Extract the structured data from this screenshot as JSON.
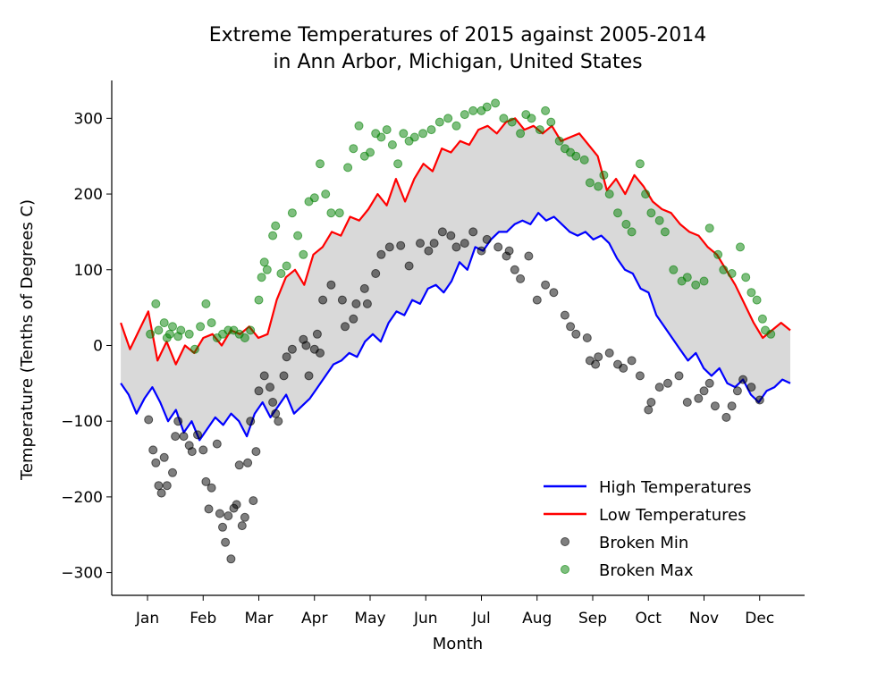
{
  "chart_data": {
    "type": "line",
    "title": "Extreme Temperatures of 2015 against 2005-2014",
    "subtitle": "in Ann Arbor, Michigan, United States",
    "xlabel": "Month",
    "ylabel": "Temperature (Tenths of Degrees C)",
    "ylim": [
      -330,
      350
    ],
    "yticks": [
      -300,
      -200,
      -100,
      0,
      100,
      200,
      300
    ],
    "ytick_labels": [
      "−300",
      "−200",
      "−100",
      "0",
      "100",
      "200",
      "300"
    ],
    "xticks": [
      "Jan",
      "Feb",
      "Mar",
      "Apr",
      "May",
      "Jun",
      "Jul",
      "Aug",
      "Sep",
      "Oct",
      "Nov",
      "Dec"
    ],
    "fill_between": {
      "color": "#d9d9d9"
    },
    "legend_position": "lower right",
    "series": [
      {
        "name": "High Temperatures",
        "kind": "line",
        "color": "#0000ff",
        "values": [
          -50,
          -65,
          -90,
          -70,
          -55,
          -75,
          -100,
          -85,
          -115,
          -100,
          -125,
          -110,
          -95,
          -105,
          -90,
          -100,
          -120,
          -90,
          -75,
          -95,
          -80,
          -65,
          -90,
          -80,
          -70,
          -55,
          -40,
          -25,
          -20,
          -10,
          -15,
          5,
          15,
          5,
          30,
          45,
          40,
          60,
          55,
          75,
          80,
          70,
          85,
          110,
          100,
          130,
          125,
          140,
          150,
          150,
          160,
          165,
          160,
          175,
          165,
          170,
          160,
          150,
          145,
          150,
          140,
          145,
          135,
          115,
          100,
          95,
          75,
          70,
          40,
          25,
          10,
          -5,
          -20,
          -10,
          -30,
          -40,
          -30,
          -50,
          -55,
          -45,
          -65,
          -75,
          -60,
          -55,
          -45,
          -50
        ]
      },
      {
        "name": "Low Temperatures",
        "kind": "line",
        "color": "#ff0000",
        "values": [
          30,
          -5,
          20,
          45,
          -20,
          5,
          -25,
          0,
          -10,
          10,
          15,
          0,
          20,
          15,
          25,
          10,
          15,
          60,
          90,
          100,
          80,
          120,
          130,
          150,
          145,
          170,
          165,
          180,
          200,
          185,
          220,
          190,
          220,
          240,
          230,
          260,
          255,
          270,
          265,
          285,
          290,
          280,
          295,
          300,
          285,
          290,
          280,
          290,
          270,
          275,
          280,
          265,
          250,
          205,
          220,
          200,
          225,
          210,
          190,
          180,
          175,
          160,
          150,
          145,
          130,
          120,
          100,
          80,
          55,
          30,
          10,
          20,
          30,
          20
        ]
      },
      {
        "name": "Broken Min",
        "kind": "scatter",
        "color": "#000000",
        "points": [
          [
            0.02,
            -98
          ],
          [
            0.1,
            -138
          ],
          [
            0.15,
            -155
          ],
          [
            0.2,
            -185
          ],
          [
            0.25,
            -195
          ],
          [
            0.3,
            -148
          ],
          [
            0.35,
            -185
          ],
          [
            0.45,
            -168
          ],
          [
            0.5,
            -120
          ],
          [
            0.55,
            -100
          ],
          [
            0.65,
            -120
          ],
          [
            0.75,
            -132
          ],
          [
            0.8,
            -140
          ],
          [
            0.9,
            -118
          ],
          [
            1.0,
            -138
          ],
          [
            1.05,
            -180
          ],
          [
            1.1,
            -216
          ],
          [
            1.15,
            -188
          ],
          [
            1.25,
            -130
          ],
          [
            1.3,
            -222
          ],
          [
            1.35,
            -240
          ],
          [
            1.4,
            -260
          ],
          [
            1.45,
            -225
          ],
          [
            1.5,
            -282
          ],
          [
            1.55,
            -215
          ],
          [
            1.6,
            -210
          ],
          [
            1.65,
            -158
          ],
          [
            1.7,
            -238
          ],
          [
            1.75,
            -227
          ],
          [
            1.8,
            -155
          ],
          [
            1.85,
            -100
          ],
          [
            1.9,
            -205
          ],
          [
            1.95,
            -140
          ],
          [
            2.0,
            -60
          ],
          [
            2.1,
            -40
          ],
          [
            2.2,
            -55
          ],
          [
            2.25,
            -75
          ],
          [
            2.3,
            -90
          ],
          [
            2.35,
            -100
          ],
          [
            2.45,
            -40
          ],
          [
            2.5,
            -15
          ],
          [
            2.6,
            -5
          ],
          [
            2.8,
            8
          ],
          [
            2.85,
            0
          ],
          [
            2.9,
            -40
          ],
          [
            3.0,
            -5
          ],
          [
            3.05,
            15
          ],
          [
            3.1,
            -10
          ],
          [
            3.15,
            60
          ],
          [
            3.3,
            80
          ],
          [
            3.5,
            60
          ],
          [
            3.55,
            25
          ],
          [
            3.7,
            35
          ],
          [
            3.75,
            55
          ],
          [
            3.9,
            75
          ],
          [
            3.95,
            55
          ],
          [
            4.1,
            95
          ],
          [
            4.2,
            120
          ],
          [
            4.35,
            130
          ],
          [
            4.55,
            132
          ],
          [
            4.7,
            105
          ],
          [
            4.9,
            135
          ],
          [
            5.05,
            125
          ],
          [
            5.15,
            135
          ],
          [
            5.3,
            150
          ],
          [
            5.45,
            145
          ],
          [
            5.55,
            130
          ],
          [
            5.7,
            135
          ],
          [
            5.85,
            150
          ],
          [
            6.0,
            125
          ],
          [
            6.1,
            140
          ],
          [
            6.3,
            130
          ],
          [
            6.45,
            118
          ],
          [
            6.5,
            125
          ],
          [
            6.6,
            100
          ],
          [
            6.7,
            88
          ],
          [
            6.85,
            118
          ],
          [
            7.0,
            60
          ],
          [
            7.15,
            80
          ],
          [
            7.3,
            70
          ],
          [
            7.5,
            40
          ],
          [
            7.6,
            25
          ],
          [
            7.7,
            15
          ],
          [
            7.9,
            10
          ],
          [
            7.95,
            -20
          ],
          [
            8.05,
            -25
          ],
          [
            8.1,
            -15
          ],
          [
            8.3,
            -10
          ],
          [
            8.45,
            -25
          ],
          [
            8.55,
            -30
          ],
          [
            8.7,
            -20
          ],
          [
            8.85,
            -40
          ],
          [
            9.0,
            -85
          ],
          [
            9.05,
            -75
          ],
          [
            9.2,
            -55
          ],
          [
            9.35,
            -50
          ],
          [
            9.55,
            -40
          ],
          [
            9.7,
            -75
          ],
          [
            9.9,
            -70
          ],
          [
            10.0,
            -60
          ],
          [
            10.1,
            -50
          ],
          [
            10.2,
            -80
          ],
          [
            10.4,
            -95
          ],
          [
            10.5,
            -80
          ],
          [
            10.6,
            -60
          ],
          [
            10.7,
            -45
          ],
          [
            10.85,
            -55
          ],
          [
            11.0,
            -72
          ]
        ]
      },
      {
        "name": "Broken Max",
        "kind": "scatter",
        "color": "#008000",
        "points": [
          [
            0.05,
            15
          ],
          [
            0.15,
            55
          ],
          [
            0.2,
            20
          ],
          [
            0.3,
            30
          ],
          [
            0.35,
            10
          ],
          [
            0.4,
            15
          ],
          [
            0.45,
            25
          ],
          [
            0.55,
            12
          ],
          [
            0.6,
            20
          ],
          [
            0.75,
            15
          ],
          [
            0.85,
            -5
          ],
          [
            0.95,
            25
          ],
          [
            1.05,
            55
          ],
          [
            1.15,
            30
          ],
          [
            1.25,
            10
          ],
          [
            1.35,
            15
          ],
          [
            1.45,
            20
          ],
          [
            1.55,
            20
          ],
          [
            1.65,
            15
          ],
          [
            1.75,
            10
          ],
          [
            1.85,
            20
          ],
          [
            2.0,
            60
          ],
          [
            2.05,
            90
          ],
          [
            2.1,
            110
          ],
          [
            2.15,
            100
          ],
          [
            2.25,
            145
          ],
          [
            2.3,
            158
          ],
          [
            2.4,
            95
          ],
          [
            2.5,
            105
          ],
          [
            2.6,
            175
          ],
          [
            2.7,
            145
          ],
          [
            2.8,
            120
          ],
          [
            2.9,
            190
          ],
          [
            3.0,
            195
          ],
          [
            3.1,
            240
          ],
          [
            3.2,
            200
          ],
          [
            3.3,
            175
          ],
          [
            3.45,
            175
          ],
          [
            3.6,
            235
          ],
          [
            3.7,
            260
          ],
          [
            3.8,
            290
          ],
          [
            3.9,
            250
          ],
          [
            4.0,
            255
          ],
          [
            4.1,
            280
          ],
          [
            4.2,
            275
          ],
          [
            4.3,
            285
          ],
          [
            4.4,
            265
          ],
          [
            4.5,
            240
          ],
          [
            4.6,
            280
          ],
          [
            4.7,
            270
          ],
          [
            4.8,
            275
          ],
          [
            4.95,
            280
          ],
          [
            5.1,
            285
          ],
          [
            5.25,
            295
          ],
          [
            5.4,
            300
          ],
          [
            5.55,
            290
          ],
          [
            5.7,
            305
          ],
          [
            5.85,
            310
          ],
          [
            6.0,
            310
          ],
          [
            6.1,
            315
          ],
          [
            6.25,
            320
          ],
          [
            6.4,
            300
          ],
          [
            6.55,
            295
          ],
          [
            6.7,
            280
          ],
          [
            6.8,
            305
          ],
          [
            6.9,
            300
          ],
          [
            7.05,
            285
          ],
          [
            7.15,
            310
          ],
          [
            7.25,
            295
          ],
          [
            7.4,
            270
          ],
          [
            7.5,
            260
          ],
          [
            7.6,
            255
          ],
          [
            7.7,
            250
          ],
          [
            7.85,
            245
          ],
          [
            7.95,
            215
          ],
          [
            8.1,
            210
          ],
          [
            8.2,
            225
          ],
          [
            8.3,
            200
          ],
          [
            8.45,
            175
          ],
          [
            8.6,
            160
          ],
          [
            8.7,
            150
          ],
          [
            8.85,
            240
          ],
          [
            8.95,
            200
          ],
          [
            9.05,
            175
          ],
          [
            9.2,
            165
          ],
          [
            9.3,
            150
          ],
          [
            9.45,
            100
          ],
          [
            9.6,
            85
          ],
          [
            9.7,
            90
          ],
          [
            9.85,
            80
          ],
          [
            10.0,
            85
          ],
          [
            10.1,
            155
          ],
          [
            10.25,
            120
          ],
          [
            10.35,
            100
          ],
          [
            10.5,
            95
          ],
          [
            10.65,
            130
          ],
          [
            10.75,
            90
          ],
          [
            10.85,
            70
          ],
          [
            10.95,
            60
          ],
          [
            11.05,
            35
          ],
          [
            11.1,
            20
          ],
          [
            11.2,
            15
          ]
        ]
      }
    ]
  }
}
